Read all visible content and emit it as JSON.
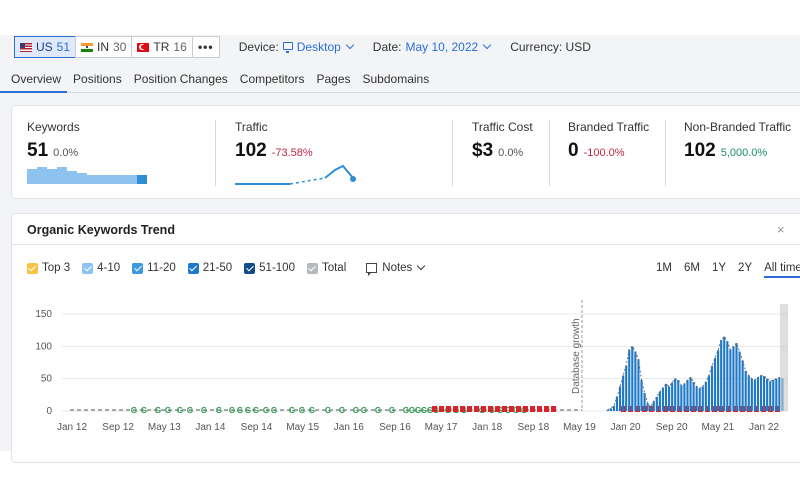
{
  "databases": [
    {
      "code": "US",
      "count": "51",
      "flag": "us-flag-icon",
      "active": true
    },
    {
      "code": "IN",
      "count": "30",
      "flag": "india-flag-icon",
      "active": false
    },
    {
      "code": "TR",
      "count": "16",
      "flag": "turkey-flag-icon",
      "active": false
    }
  ],
  "more_label": "•••",
  "device": {
    "label": "Device:",
    "value": "Desktop"
  },
  "date": {
    "label": "Date:",
    "value": "May 10, 2022"
  },
  "currency": {
    "label": "Currency: USD"
  },
  "tabs": [
    "Overview",
    "Positions",
    "Position Changes",
    "Competitors",
    "Pages",
    "Subdomains"
  ],
  "active_tab": "Overview",
  "kpis": {
    "keywords": {
      "label": "Keywords",
      "value": "51",
      "change": "0.0%",
      "trend": [
        8,
        9,
        8,
        9,
        7,
        6,
        5,
        5,
        5,
        5,
        5,
        5
      ]
    },
    "traffic": {
      "label": "Traffic",
      "value": "102",
      "change": "-73.58%"
    },
    "traffic_cost": {
      "label": "Traffic Cost",
      "value": "$3",
      "change": "0.0%"
    },
    "branded": {
      "label": "Branded Traffic",
      "value": "0",
      "change": "-100.0%"
    },
    "non_branded": {
      "label": "Non-Branded Traffic",
      "value": "102",
      "change": "5,000.0%"
    }
  },
  "trend": {
    "title": "Organic Keywords Trend",
    "close": "×",
    "legend": [
      {
        "label": "Top 3",
        "color": "#f5c242"
      },
      {
        "label": "4-10",
        "color": "#8ec3ef"
      },
      {
        "label": "11-20",
        "color": "#3b9be0"
      },
      {
        "label": "21-50",
        "color": "#1f79c8"
      },
      {
        "label": "51-100",
        "color": "#104c8a"
      },
      {
        "label": "Total",
        "color": "#b5b8bd"
      }
    ],
    "notes_label": "Notes",
    "ranges": [
      "1M",
      "6M",
      "1Y",
      "2Y",
      "All time"
    ],
    "active_range": "All time",
    "annotation": "Database growth"
  },
  "chart_data": {
    "type": "bar",
    "ylim": [
      0,
      150
    ],
    "yticks": [
      0,
      50,
      100,
      150
    ],
    "xticks": [
      "Jan 12",
      "Sep 12",
      "May 13",
      "Jan 14",
      "Sep 14",
      "May 15",
      "Jan 16",
      "Sep 16",
      "May 17",
      "Jan 18",
      "Sep 18",
      "May 19",
      "Jan 20",
      "Sep 20",
      "May 21",
      "Jan 22"
    ],
    "series": [
      {
        "values": [
          0,
          0,
          0,
          0,
          0,
          0,
          0,
          0,
          0,
          0,
          0,
          0,
          0,
          0,
          0,
          0,
          0,
          0,
          0,
          0,
          0,
          0,
          0,
          0,
          0,
          0,
          0,
          0,
          0,
          0,
          0,
          0,
          0,
          0,
          0,
          0,
          0,
          0,
          0,
          0,
          0,
          0,
          0,
          0,
          0,
          0,
          0,
          0,
          0,
          0,
          0,
          0,
          0,
          0,
          0,
          0,
          0,
          0,
          0,
          0,
          0,
          0,
          0,
          0,
          0,
          0,
          0,
          0,
          0,
          0,
          0,
          0,
          0,
          0,
          0,
          0,
          0,
          0,
          0,
          0,
          0,
          0,
          0,
          0,
          0,
          0,
          0,
          0,
          0,
          0,
          0,
          0,
          0,
          0,
          0,
          0,
          0,
          0,
          0,
          0,
          0,
          0,
          0,
          0,
          0,
          0,
          0,
          0,
          0,
          0,
          0,
          0,
          0,
          0,
          0,
          0,
          0,
          0,
          0,
          0,
          0,
          0,
          0,
          0,
          0,
          0,
          0,
          0,
          0,
          0,
          0,
          0,
          0,
          0,
          0,
          0,
          0,
          0,
          0,
          0,
          0,
          0,
          0,
          0,
          0,
          0,
          0,
          0,
          0,
          0,
          0,
          0,
          0,
          0,
          0,
          0,
          0,
          0,
          0,
          0,
          0,
          0,
          0,
          0,
          0,
          0,
          0,
          0,
          0,
          0,
          0,
          0,
          0,
          0,
          0,
          2,
          4,
          8,
          22,
          38,
          55,
          70,
          95,
          100,
          92,
          80,
          48,
          28,
          12,
          6,
          15,
          22,
          30,
          36,
          42,
          38,
          44,
          50,
          48,
          40,
          42,
          48,
          52,
          45,
          38,
          35,
          38,
          45,
          55,
          70,
          82,
          94,
          110,
          115,
          108,
          95,
          100,
          105,
          92,
          78,
          62,
          55,
          50,
          48,
          52,
          55,
          54,
          50,
          46,
          48,
          50,
          52,
          50
        ]
      }
    ],
    "annotation": "Database growth"
  }
}
